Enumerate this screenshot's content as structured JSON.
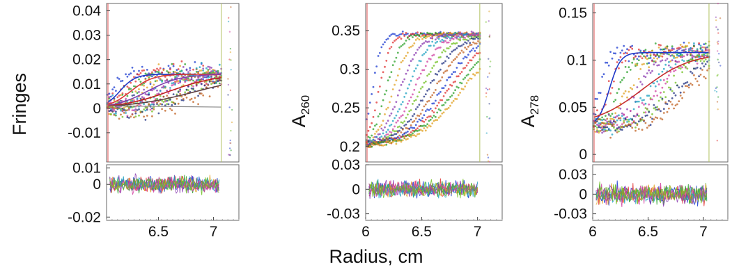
{
  "figure": {
    "xlabel": "Radius, cm"
  },
  "chart_data": [
    {
      "type": "scatter",
      "panel": "left",
      "ylabel": "Fringes",
      "xlim": [
        6.03,
        7.23
      ],
      "ylim": [
        -0.022,
        0.043
      ],
      "yticks": [
        {
          "v": 0.04,
          "label": "0.04"
        },
        {
          "v": 0.03,
          "label": "0.03"
        },
        {
          "v": 0.02,
          "label": "0.02"
        },
        {
          "v": 0.01,
          "label": "0.01"
        },
        {
          "v": 0,
          "label": "0"
        },
        {
          "v": -0.01,
          "label": "-0.01"
        }
      ],
      "xticks": [
        {
          "v": 6.5,
          "label": "6.5"
        },
        {
          "v": 7,
          "label": "7"
        }
      ],
      "baseline": 0.0,
      "plateau": 0.014,
      "noise": 0.004,
      "meniscus": 7.07,
      "curve_series": [
        {
          "color": "#2038c8",
          "mid": 6.15,
          "width": 0.07
        },
        {
          "color": "#d83838",
          "mid": 6.25,
          "width": 0.1
        },
        {
          "color": "#8040b0",
          "mid": 6.4,
          "width": 0.15
        },
        {
          "color": "#c02020",
          "mid": 6.6,
          "width": 0.22
        },
        {
          "color": "#604040",
          "mid": 6.85,
          "width": 0.3
        }
      ],
      "residuals": {
        "ylim": [
          -0.022,
          0.012
        ],
        "yticks": [
          {
            "v": 0.01,
            "label": "0.01"
          },
          {
            "v": 0,
            "label": "0"
          },
          {
            "v": -0.02,
            "label": "-0.02"
          }
        ],
        "amplitude": 0.006
      }
    },
    {
      "type": "scatter",
      "panel": "middle",
      "ylabel": "A260",
      "ylabel_main": "A",
      "ylabel_sub": "260",
      "xlim": [
        6.0,
        7.22
      ],
      "ylim": [
        0.18,
        0.385
      ],
      "yticks": [
        {
          "v": 0.35,
          "label": "0.35"
        },
        {
          "v": 0.3,
          "label": "0.3"
        },
        {
          "v": 0.25,
          "label": "0.25"
        },
        {
          "v": 0.2,
          "label": "0.2"
        }
      ],
      "xticks": [
        {
          "v": 6,
          "label": "6"
        },
        {
          "v": 6.5,
          "label": "6.5"
        },
        {
          "v": 7,
          "label": "7"
        }
      ],
      "baseline": 0.2,
      "plateau": 0.345,
      "noise": 0.004,
      "meniscus": 7.02,
      "curve_series": [],
      "residuals": {
        "ylim": [
          -0.038,
          0.03
        ],
        "yticks": [
          {
            "v": 0.03,
            "label": "0.03"
          },
          {
            "v": 0,
            "label": "0"
          },
          {
            "v": -0.03,
            "label": "-0.03"
          }
        ],
        "amplitude": 0.012
      }
    },
    {
      "type": "scatter",
      "panel": "right",
      "ylabel": "A278",
      "ylabel_main": "A",
      "ylabel_sub": "278",
      "xlim": [
        6.0,
        7.22
      ],
      "ylim": [
        -0.008,
        0.16
      ],
      "yticks": [
        {
          "v": 0.15,
          "label": "0.15"
        },
        {
          "v": 0.1,
          "label": "0.1"
        },
        {
          "v": 0.05,
          "label": "0.05"
        },
        {
          "v": 0,
          "label": "0"
        }
      ],
      "xticks": [
        {
          "v": 6,
          "label": "6"
        },
        {
          "v": 6.5,
          "label": "6.5"
        },
        {
          "v": 7,
          "label": "7"
        }
      ],
      "baseline": 0.03,
      "plateau": 0.108,
      "noise": 0.012,
      "meniscus": 7.05,
      "curve_series": [
        {
          "color": "#2038c8",
          "mid": 6.15,
          "width": 0.05
        },
        {
          "color": "#c83030",
          "mid": 6.45,
          "width": 0.22
        }
      ],
      "residuals": {
        "ylim": [
          -0.04,
          0.045
        ],
        "yticks": [
          {
            "v": 0.03,
            "label": "0.03"
          },
          {
            "v": 0,
            "label": "0"
          },
          {
            "v": -0.03,
            "label": "-0.03"
          }
        ],
        "amplitude": 0.018
      }
    }
  ],
  "scan_colors": [
    "#1a3ad0",
    "#e03030",
    "#28a028",
    "#e0a020",
    "#8a3ab0",
    "#1aa0c0",
    "#d040a0",
    "#70c020",
    "#203080",
    "#c06020"
  ]
}
